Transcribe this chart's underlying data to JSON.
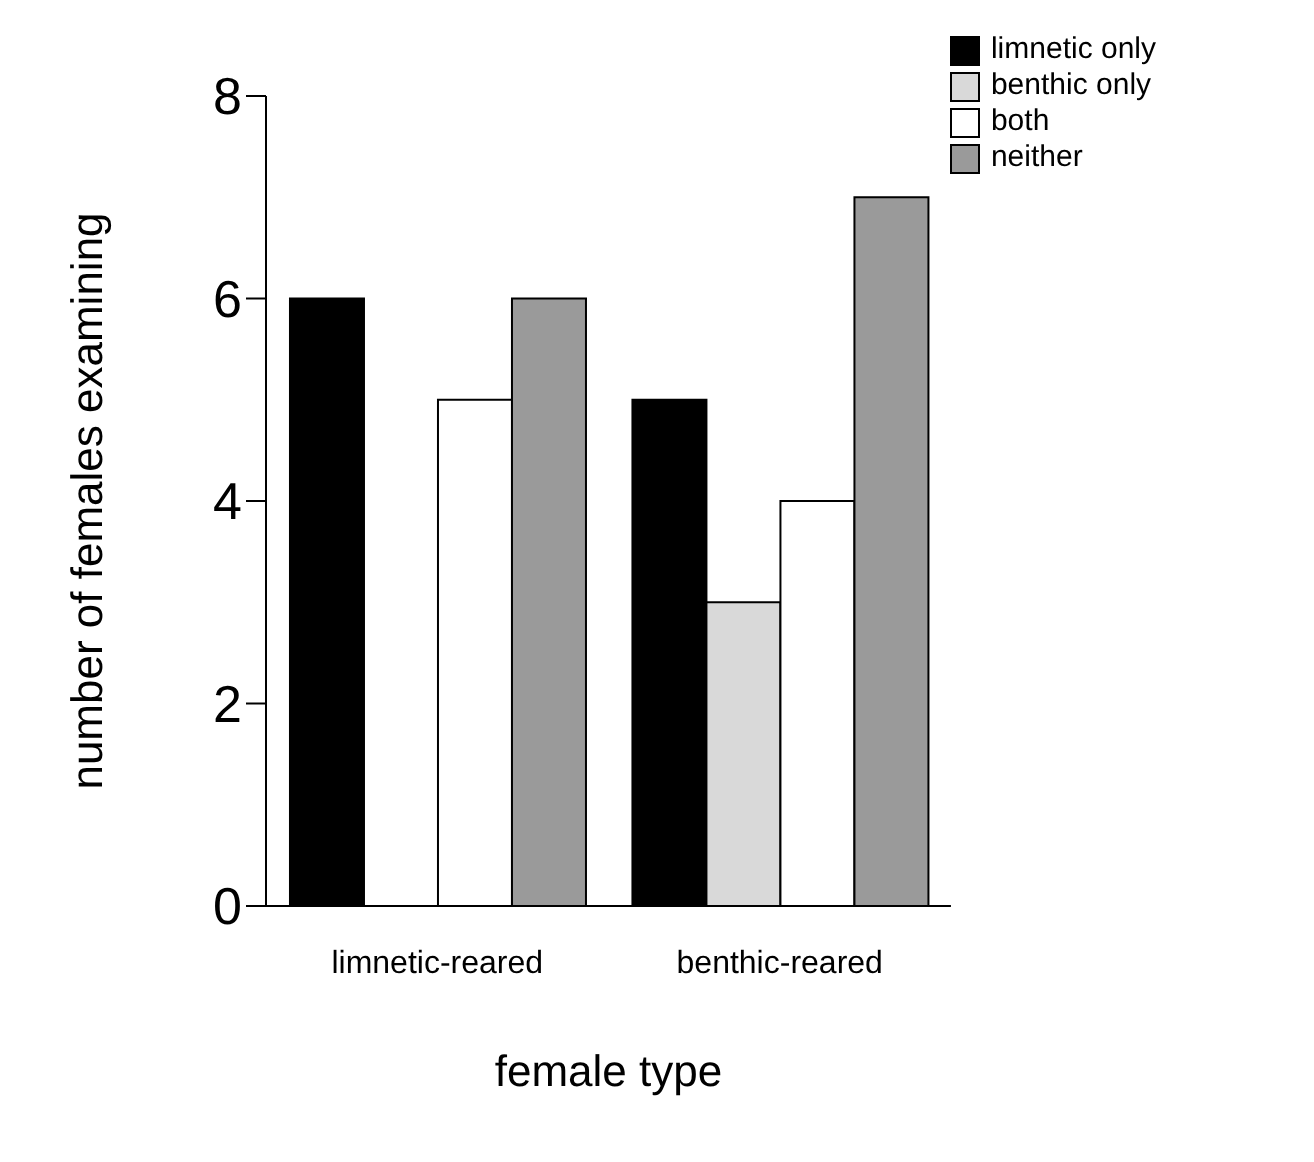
{
  "chart_data": {
    "type": "bar",
    "xlabel": "female type",
    "ylabel": "number of females examining",
    "categories": [
      "limnetic-reared",
      "benthic-reared"
    ],
    "series": [
      {
        "name": "limnetic only",
        "color": "#000000",
        "values": [
          6,
          5
        ]
      },
      {
        "name": "benthic only",
        "color": "#d9d9d9",
        "values": [
          0,
          3
        ]
      },
      {
        "name": "both",
        "color": "#ffffff",
        "values": [
          5,
          4
        ]
      },
      {
        "name": "neither",
        "color": "#9a9a9a",
        "values": [
          6,
          7
        ]
      }
    ],
    "ylim": [
      0,
      8
    ],
    "yticks": [
      0,
      2,
      4,
      6,
      8
    ],
    "grid": false,
    "legend": "top right"
  }
}
